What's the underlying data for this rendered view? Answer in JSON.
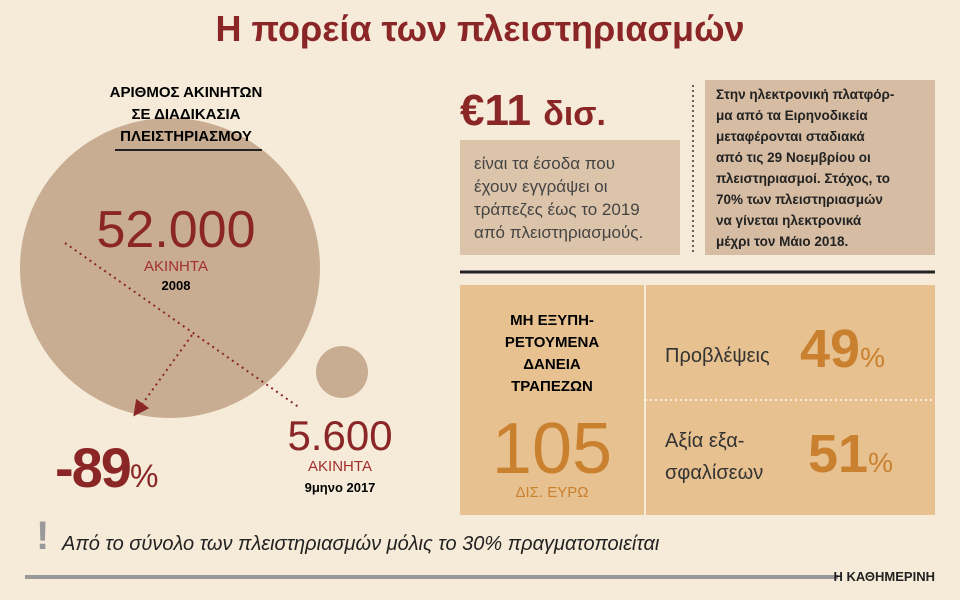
{
  "header": {
    "title": "Η πορεία των πλειστηριασμών"
  },
  "properties": {
    "heading": [
      "ΑΡΙΘΜΟΣ ΑΚΙΝΗΤΩΝ",
      "ΣΕ ΔΙΑΔΙΚΑΣΙΑ",
      "ΠΛΕΙΣΤΗΡΙΑΣΜΟΥ"
    ],
    "first": {
      "value": "52.000",
      "unit": "ΑΚΙΝΗΤΑ",
      "period": "2008"
    },
    "second": {
      "value": "5.600",
      "unit": "ΑΚΙΝΗΤΑ",
      "period": "9μηνο 2017"
    },
    "change": {
      "value": "-89",
      "unit": "%"
    }
  },
  "revenue": {
    "value": "€11",
    "unit": "δισ.",
    "text": [
      "είναι τα έσοδα που",
      "έχουν εγγράψει οι",
      "τράπεζες έως το 2019",
      "από πλειστηριασμούς."
    ]
  },
  "note": {
    "lines": [
      "Στην ηλεκτρονική πλατφόρ-",
      "μα από τα Ειρηνοδικεία",
      "μεταφέρονται σταδιακά",
      "από τις 29 Νοεμβρίου οι",
      "πλειστηριασμοί. Στόχος, το",
      "70% των πλειστηριασμών",
      "να γίνεται ηλεκτρονικά",
      "μέχρι τον Μάιο 2018."
    ]
  },
  "npl": {
    "heading": [
      "ΜΗ ΕΞΥΠΗ-",
      "ΡΕΤΟΥΜΕΝΑ",
      "ΔΑΝΕΙΑ",
      "ΤΡΑΠΕΖΩΝ"
    ],
    "value": "105",
    "unit": "ΔΙΣ. ΕΥΡΩ",
    "provisions": {
      "label": [
        "Προβλέψεις"
      ],
      "value": "49",
      "unit": "%"
    },
    "collateral": {
      "label": [
        "Αξία εξα-",
        "σφαλίσεων"
      ],
      "value": "51",
      "unit": "%"
    }
  },
  "footer": {
    "mark": "!",
    "caption": "Από το σύνολο των πλειστηριασμών μόλις το 30% πραγματοποιείται",
    "source": "Η ΚΑΘΗΜΕΡΙΝΗ"
  }
}
